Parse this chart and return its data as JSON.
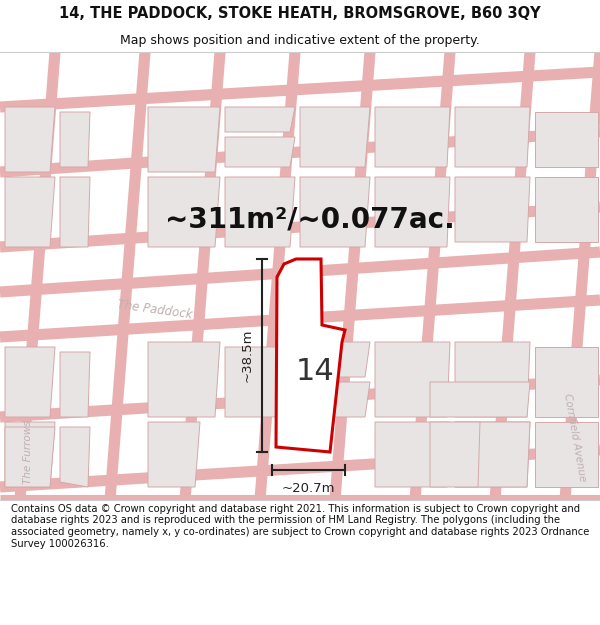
{
  "title": "14, THE PADDOCK, STOKE HEATH, BROMSGROVE, B60 3QY",
  "subtitle": "Map shows position and indicative extent of the property.",
  "area_text": "~311m²/~0.077ac.",
  "dim_width": "~20.7m",
  "dim_height": "~38.5m",
  "plot_number": "14",
  "footer": "Contains OS data © Crown copyright and database right 2021. This information is subject to Crown copyright and database rights 2023 and is reproduced with the permission of HM Land Registry. The polygons (including the associated geometry, namely x, y co-ordinates) are subject to Crown copyright and database rights 2023 Ordnance Survey 100026316.",
  "title_fontsize": 10.5,
  "subtitle_fontsize": 9,
  "area_fontsize": 20,
  "plot_fontsize": 22,
  "footer_fontsize": 7.2,
  "map_bg": "#f5f0f0",
  "block_fill": "#e8e4e4",
  "block_edge": "#d4a8a8",
  "road_color": "#e8b0b0",
  "road_lw": 8,
  "plot_fill": "#ffffff",
  "plot_edge": "#cc0000",
  "plot_lw": 2.2,
  "dim_color": "#222222",
  "street_label_color": "#c0b0b0",
  "title_color": "#111111",
  "white": "#ffffff"
}
